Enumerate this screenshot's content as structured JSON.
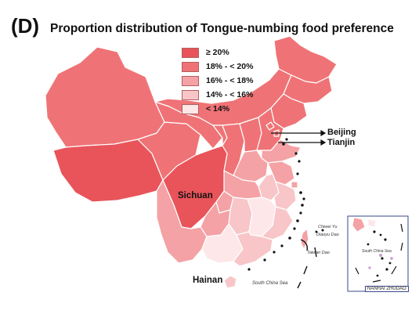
{
  "header": {
    "panel_letter": "(D)",
    "title": "Proportion distribution of Tongue-numbing food preference"
  },
  "legend": {
    "items": [
      {
        "label": "≥ 20%",
        "color": "#e8545a"
      },
      {
        "label": "18% - < 20%",
        "color": "#ef7376"
      },
      {
        "label": "16% - < 18%",
        "color": "#f4a2a5"
      },
      {
        "label": "14% - < 16%",
        "color": "#f8c6c8"
      },
      {
        "label": "< 14%",
        "color": "#fde7e8"
      }
    ]
  },
  "labels": {
    "beijing": "Beijing",
    "tianjin": "Tianjin",
    "sichuan": "Sichuan",
    "hainan": "Hainan",
    "south_china_sea": "South China Sea",
    "diaoyu_dao": "Diaoyu Dao",
    "chiwei_yu": "Chiwei Yu",
    "taiwan_dao": "Taiwan Dao",
    "inset_sea": "South China Sea",
    "inset_title": "NANHAI ZHUDAO"
  },
  "colors": {
    "border": "#ffffff",
    "arrow": "#111111",
    "inset_frame": "#3a4a8a"
  }
}
